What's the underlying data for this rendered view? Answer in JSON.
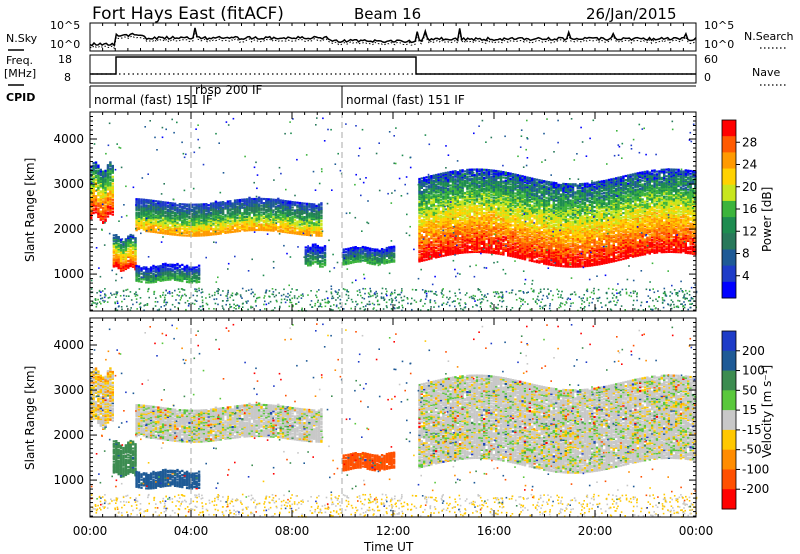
{
  "header": {
    "title": "Fort Hays East (fitACF)",
    "beam": "Beam 16",
    "date": "26/Jan/2015"
  },
  "left_labels": {
    "nsky": "N.Sky",
    "freq": "Freq.",
    "freq_unit": "[MHz]",
    "cpid": "CPID"
  },
  "right_labels": {
    "nsearch": "N.Search",
    "nave": "Nave"
  },
  "noise_panel": {
    "ticks_left": [
      "10^5",
      "10^0"
    ],
    "ticks_right": [
      "10^5",
      "10^0"
    ]
  },
  "freq_panel": {
    "ticks_left": [
      "18",
      "8"
    ],
    "ticks_right": [
      "60",
      "0"
    ]
  },
  "cpid_panel": {
    "labels": [
      "normal (fast) 151 IF",
      "rbsp 200 IF",
      "normal (fast) 151 IF"
    ]
  },
  "power_colorbar": {
    "label": "Power [dB]",
    "ticks": [
      "28",
      "24",
      "20",
      "16",
      "12",
      "8",
      "4"
    ],
    "colors": [
      "#ff0000",
      "#ff5a00",
      "#ff9a00",
      "#ffd200",
      "#c8e61e",
      "#3cb43c",
      "#1e8c50",
      "#28785a",
      "#1e5a96",
      "#1e3cc8",
      "#0000ff"
    ]
  },
  "velocity_colorbar": {
    "label": "Velocity [m s⁻¹]",
    "ticks": [
      "200",
      "100",
      "50",
      "15",
      "-15",
      "-50",
      "-100",
      "-200"
    ],
    "colors": [
      "#1e3cc8",
      "#1e5a96",
      "#3c8c50",
      "#5ac83c",
      "#c8c8c8",
      "#ffc800",
      "#ff8c00",
      "#ff5000",
      "#ff0000"
    ]
  },
  "axes": {
    "ylabel": "Slant Range [km]",
    "yticks": [
      "4000",
      "3000",
      "2000",
      "1000"
    ],
    "xlabel": "Time UT",
    "xticks": [
      "00:00",
      "04:00",
      "08:00",
      "12:00",
      "16:00",
      "20:00",
      "00:00"
    ]
  },
  "chart_data": [
    {
      "type": "heatmap",
      "name": "Power",
      "x_range_hours": [
        0,
        24
      ],
      "y_range_km": [
        180,
        4600
      ],
      "unit": "dB",
      "features": [
        {
          "t0": 0.0,
          "t1": 0.9,
          "r0": 2200,
          "r1": 3500,
          "level": "high"
        },
        {
          "t0": 0.9,
          "t1": 1.8,
          "r0": 1100,
          "r1": 1900,
          "level": "high"
        },
        {
          "t0": 1.8,
          "t1": 9.2,
          "r0": 1900,
          "r1": 2700,
          "level": "medium"
        },
        {
          "t0": 1.8,
          "t1": 4.3,
          "r0": 850,
          "r1": 1250,
          "level": "low"
        },
        {
          "t0": 8.5,
          "t1": 9.3,
          "r0": 1200,
          "r1": 1700,
          "level": "low"
        },
        {
          "t0": 10.0,
          "t1": 12.0,
          "r0": 1250,
          "r1": 1650,
          "level": "low"
        },
        {
          "t0": 13.0,
          "t1": 24.0,
          "r0": 1250,
          "r1": 3300,
          "level": "high"
        }
      ]
    },
    {
      "type": "heatmap",
      "name": "Velocity",
      "x_range_hours": [
        0,
        24
      ],
      "y_range_km": [
        180,
        4600
      ],
      "unit": "m s-1",
      "features": [
        {
          "t0": 0.0,
          "t1": 0.9,
          "r0": 2200,
          "r1": 3500,
          "velocity": -15
        },
        {
          "t0": 0.9,
          "t1": 1.8,
          "r0": 1100,
          "r1": 1900,
          "velocity": 50
        },
        {
          "t0": 1.8,
          "t1": 9.2,
          "r0": 1900,
          "r1": 2700,
          "velocity": 0
        },
        {
          "t0": 1.8,
          "t1": 4.3,
          "r0": 850,
          "r1": 1250,
          "velocity": 100
        },
        {
          "t0": 10.0,
          "t1": 12.0,
          "r0": 1250,
          "r1": 1650,
          "velocity": -100
        },
        {
          "t0": 13.0,
          "t1": 24.0,
          "r0": 1250,
          "r1": 3300,
          "velocity": 0
        }
      ]
    }
  ]
}
